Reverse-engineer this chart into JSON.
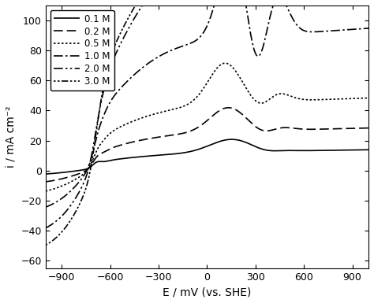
{
  "xlabel": "E / mV (vs. SHE)",
  "ylabel": "i / mA cm⁻²",
  "xlim": [
    -1000,
    1000
  ],
  "ylim": [
    -65,
    110
  ],
  "xticks": [
    -900,
    -600,
    -300,
    0,
    300,
    600,
    900
  ],
  "yticks": [
    -60,
    -40,
    -20,
    0,
    20,
    40,
    60,
    80,
    100
  ],
  "legend_labels": [
    "0.1 M",
    "0.2 M",
    "0.5 M",
    "1.0 M",
    "2.0 M",
    "3.0 M"
  ]
}
